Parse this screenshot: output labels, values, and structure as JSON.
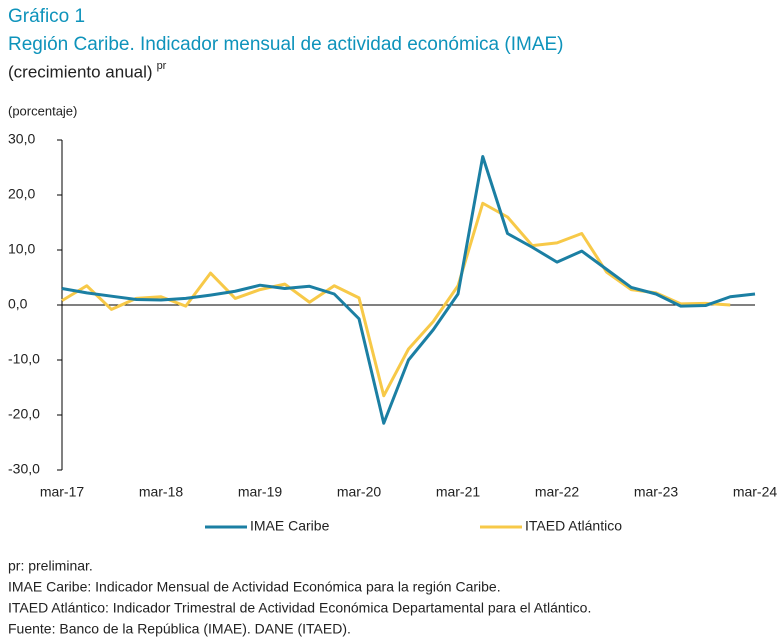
{
  "chart_data": {
    "type": "line",
    "label": "Gráfico 1",
    "title": "Región Caribe. Indicador mensual de actividad económica (IMAE)",
    "subtitle": "(crecimiento anual)",
    "subtitle_superscript": "pr",
    "y_axis_label": "(porcentaje)",
    "categories": [
      "mar-17",
      null,
      null,
      null,
      "mar-18",
      null,
      null,
      null,
      "mar-19",
      null,
      null,
      null,
      "mar-20",
      null,
      null,
      null,
      "mar-21",
      null,
      null,
      null,
      "mar-22",
      null,
      null,
      null,
      "mar-23",
      null,
      null,
      null,
      "mar-24"
    ],
    "series": [
      {
        "name": "IMAE Caribe",
        "color": "#1b7fa3",
        "values": [
          3.0,
          2.2,
          1.6,
          1.0,
          0.9,
          1.2,
          1.8,
          2.5,
          3.6,
          3.0,
          3.4,
          2.0,
          -2.5,
          -21.5,
          -10.0,
          -4.5,
          2.0,
          27.0,
          13.0,
          10.5,
          7.8,
          9.8,
          6.5,
          3.2,
          2.0,
          -0.2,
          -0.1,
          1.5,
          2.0
        ]
      },
      {
        "name": "ITAED Atlántico",
        "color": "#f7c948",
        "values": [
          0.8,
          3.5,
          -0.8,
          1.2,
          1.5,
          -0.2,
          5.8,
          1.2,
          2.8,
          3.8,
          0.5,
          3.5,
          1.3,
          -16.5,
          -8.0,
          -3.0,
          3.5,
          18.5,
          16.0,
          10.8,
          11.3,
          13.0,
          6.0,
          2.8,
          2.2,
          0.2,
          0.3,
          0.0,
          null
        ]
      }
    ],
    "ylim": [
      -30,
      30
    ],
    "yticks": [
      {
        "value": -30,
        "label": "-30,0"
      },
      {
        "value": -20,
        "label": "-20,0"
      },
      {
        "value": -10,
        "label": "-10,0"
      },
      {
        "value": 0,
        "label": "0,0"
      },
      {
        "value": 10,
        "label": "10,0"
      },
      {
        "value": 20,
        "label": "20,0"
      },
      {
        "value": 30,
        "label": "30,0"
      }
    ],
    "grid": false,
    "legend": "bottom",
    "notes": [
      "pr: preliminar.",
      "IMAE Caribe: Indicador Mensual de Actividad Económica para la región Caribe.",
      "ITAED Atlántico: Indicador Trimestral de Actividad Económica Departamental para el Atlántico.",
      "Fuente: Banco de la República (IMAE). DANE (ITAED)."
    ]
  }
}
